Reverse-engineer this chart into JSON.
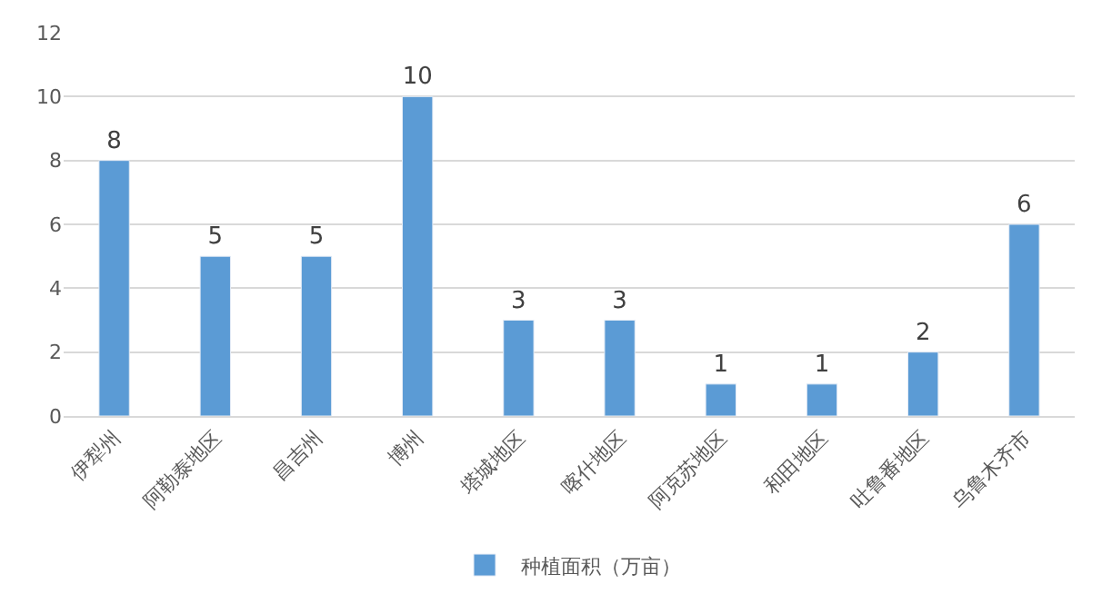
{
  "chart_data": {
    "type": "bar",
    "categories": [
      "伊犁州",
      "阿勒泰地区",
      "昌吉州",
      "博州",
      "塔城地区",
      "喀什地区",
      "阿克苏地区",
      "和田地区",
      "吐鲁番地区",
      "乌鲁木齐市"
    ],
    "series": [
      {
        "name": "种植面积（万亩）",
        "color": "#5b9bd5",
        "values": [
          8,
          5,
          5,
          10,
          3,
          3,
          1,
          1,
          2,
          6
        ]
      }
    ],
    "ylim": [
      0,
      12
    ],
    "yticks": [
      0,
      2,
      4,
      6,
      8,
      10,
      12
    ],
    "grid": "y",
    "legend": "bottom",
    "data_labels": true
  }
}
